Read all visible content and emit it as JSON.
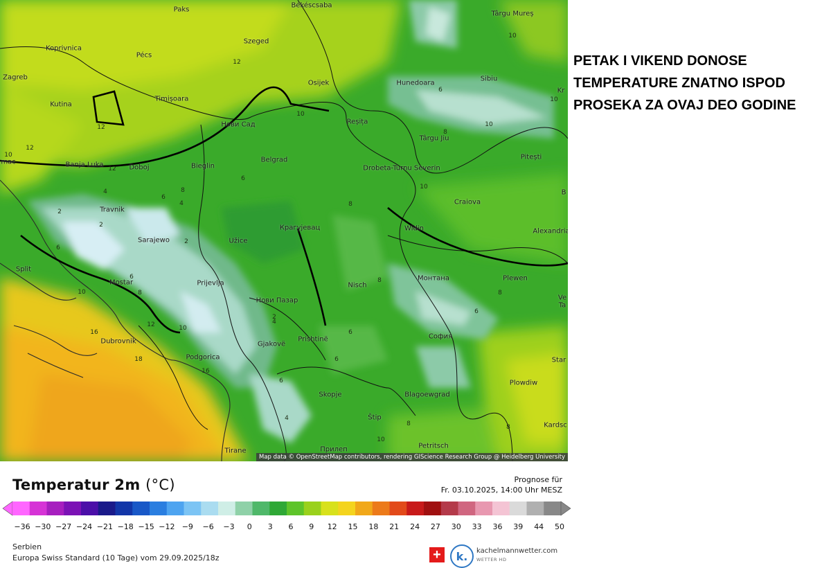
{
  "headline": "PETAK I VIKEND DONOSE TEMPERATURE ZNATNO ISPOD PROSEKA ZA OVAJ DEO GODINE",
  "map": {
    "attribution": "Map data © OpenStreetMap contributors, rendering GIScience Research Group @ Heidelberg University",
    "cities": [
      "Paks",
      "Békéscsaba",
      "Târgu Mureș",
      "Koprivnica",
      "Pécs",
      "Szeged",
      "Zagreb",
      "Osijek",
      "Timișoara",
      "Hunedoara",
      "Sibiu",
      "Kutina",
      "Нови Сад",
      "Reșița",
      "Târgu Jiu",
      "Banja Luka",
      "Doboj",
      "Bieglin",
      "Belgrad",
      "Drobeta-Turnu Severin",
      "Pitești",
      "Travnik",
      "Craiova",
      "Крагујевац",
      "Sarajewo",
      "Užice",
      "Widin",
      "Alexandria",
      "Split",
      "Mostar",
      "Prijevlja",
      "Nisch",
      "Монтана",
      "Plewen",
      "Нови Пазар",
      "Dubrovnik",
      "Prishtinë",
      "София",
      "Podgorica",
      "Gjakovë",
      "Skopje",
      "Plowdiw",
      "Blagoewgrad",
      "Štip",
      "Tirane",
      "Прилеп",
      "Petritsch",
      "Kardsc",
      "Star",
      "Kr",
      "Ve",
      "Ta",
      "B",
      "mac"
    ],
    "contour_labels": [
      "10",
      "12",
      "12",
      "10",
      "4",
      "6",
      "8",
      "6",
      "10",
      "12",
      "10",
      "12",
      "8",
      "4",
      "2",
      "2",
      "2",
      "6",
      "6",
      "8",
      "10",
      "12",
      "16",
      "18",
      "16",
      "10",
      "6",
      "4",
      "2",
      "6",
      "8",
      "6",
      "4",
      "8",
      "10",
      "6",
      "8",
      "10",
      "8",
      "6",
      "10",
      "8"
    ]
  },
  "legend": {
    "title": "Temperatur 2m",
    "unit": "(°C)",
    "ticks": [
      "−36",
      "−30",
      "−27",
      "−24",
      "−21",
      "−18",
      "−15",
      "−12",
      "−9",
      "−6",
      "−3",
      "0",
      "3",
      "6",
      "9",
      "12",
      "15",
      "18",
      "21",
      "24",
      "27",
      "30",
      "33",
      "36",
      "39",
      "44",
      "50"
    ],
    "forecast_label": "Prognose für",
    "forecast_time": "Fr. 03.10.2025, 14:00 Uhr MESZ",
    "region": "Serbien",
    "model": "Europa Swiss Standard (10 Tage) vom  29.09.2025/18z",
    "colors": [
      "#ff66ff",
      "#d633d6",
      "#a71fbf",
      "#7b12b5",
      "#4b0fa8",
      "#1a1a8a",
      "#1236a8",
      "#1958c7",
      "#2a7ee0",
      "#4ea4f0",
      "#7cc4f4",
      "#aadcf0",
      "#cfeee6",
      "#8fd1a8",
      "#4fb86a",
      "#2fa836",
      "#5ec42a",
      "#9ad11c",
      "#d8e11c",
      "#f4d41e",
      "#f1a81a",
      "#ec7a1a",
      "#e24a1a",
      "#c81a1a",
      "#a01010",
      "#b43a4a",
      "#d06680",
      "#e898b0",
      "#f4c4d4",
      "#dadada",
      "#b0b0b0",
      "#888888"
    ]
  },
  "branding": {
    "flag_symbol": "+",
    "logo_letter": "k.",
    "name": "kachelmannwetter.com",
    "sub": "WETTER HD"
  }
}
